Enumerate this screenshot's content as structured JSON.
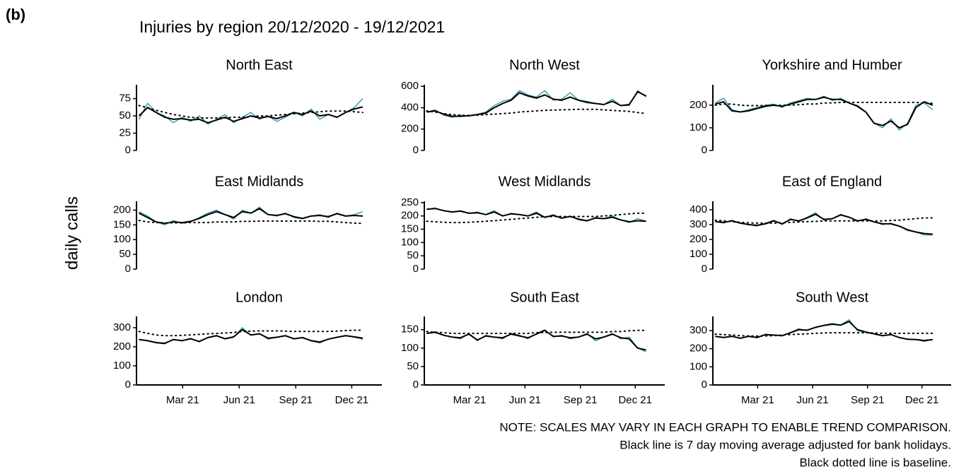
{
  "panel_label": "(b)",
  "chart_data": {
    "type": "line",
    "title": "Injuries by region 20/12/2020 - 19/12/2021",
    "y_label": "daily calls",
    "annotations": [
      "NOTE: SCALES MAY VARY IN EACH GRAPH TO ENABLE TREND COMPARISON.",
      "Black line is 7 day moving average adjusted for bank holidays.",
      "Black dotted line is baseline."
    ],
    "x": [
      "2020-12-20",
      "2021-01-03",
      "2021-01-17",
      "2021-01-31",
      "2021-02-14",
      "2021-02-28",
      "2021-03-14",
      "2021-03-28",
      "2021-04-11",
      "2021-04-25",
      "2021-05-09",
      "2021-05-23",
      "2021-06-06",
      "2021-06-20",
      "2021-07-04",
      "2021-07-18",
      "2021-08-01",
      "2021-08-15",
      "2021-08-29",
      "2021-09-12",
      "2021-09-26",
      "2021-10-10",
      "2021-10-24",
      "2021-11-07",
      "2021-11-21",
      "2021-12-05",
      "2021-12-19"
    ],
    "xlim": [
      "2020-12-16",
      "2022-01-19"
    ],
    "xticks": [
      {
        "value": "2021-03-01",
        "label": "Mar 21"
      },
      {
        "value": "2021-06-01",
        "label": "Jun 21"
      },
      {
        "value": "2021-09-01",
        "label": "Sep 21"
      },
      {
        "value": "2021-12-01",
        "label": "Dec 21"
      }
    ],
    "panels": [
      {
        "title": "North East",
        "ylim": [
          0,
          95
        ],
        "yticks": [
          0,
          25,
          50,
          75
        ],
        "series": [
          {
            "color": "#168a99",
            "values": [
              45,
              68,
              55,
              50,
              40,
              48,
              42,
              50,
              38,
              45,
              52,
              40,
              48,
              55,
              45,
              50,
              42,
              48,
              55,
              50,
              60,
              45,
              52,
              48,
              55,
              62,
              75
            ]
          },
          {
            "color": "#000000",
            "values": [
              50,
              62,
              55,
              48,
              45,
              46,
              44,
              45,
              40,
              44,
              48,
              42,
              46,
              50,
              47,
              49,
              46,
              50,
              55,
              52,
              57,
              50,
              52,
              48,
              55,
              60,
              63
            ]
          },
          {
            "color": "#000000",
            "style": "dotted",
            "values": [
              65,
              62,
              58,
              55,
              52,
              50,
              48,
              47,
              47,
              47,
              47,
              48,
              48,
              49,
              50,
              50,
              51,
              52,
              53,
              54,
              55,
              56,
              57,
              57,
              57,
              56,
              55
            ]
          }
        ]
      },
      {
        "title": "North West",
        "ylim": [
          0,
          615
        ],
        "yticks": [
          0,
          200,
          400,
          600
        ],
        "series": [
          {
            "color": "#168a99",
            "values": [
              360,
              380,
              330,
              310,
              330,
              320,
              340,
              360,
              420,
              460,
              480,
              560,
              520,
              500,
              560,
              470,
              480,
              540,
              470,
              460,
              440,
              430,
              480,
              420,
              420,
              560,
              500
            ]
          },
          {
            "color": "#000000",
            "values": [
              360,
              370,
              340,
              320,
              320,
              325,
              335,
              350,
              400,
              440,
              470,
              540,
              510,
              490,
              520,
              480,
              470,
              500,
              470,
              450,
              440,
              430,
              460,
              420,
              430,
              550,
              510
            ]
          },
          {
            "color": "#000000",
            "style": "dotted",
            "values": [
              370,
              360,
              345,
              335,
              330,
              328,
              330,
              335,
              340,
              345,
              350,
              360,
              365,
              370,
              375,
              378,
              380,
              382,
              385,
              385,
              385,
              380,
              375,
              370,
              365,
              355,
              345
            ]
          }
        ]
      },
      {
        "title": "Yorkshire and Humber",
        "ylim": [
          0,
          290
        ],
        "yticks": [
          0,
          100,
          200
        ],
        "series": [
          {
            "color": "#168a99",
            "values": [
              210,
              230,
              180,
              170,
              180,
              190,
              200,
              205,
              190,
              210,
              220,
              230,
              225,
              240,
              220,
              230,
              210,
              200,
              170,
              120,
              100,
              140,
              90,
              120,
              200,
              210,
              180
            ]
          },
          {
            "color": "#000000",
            "values": [
              205,
              215,
              175,
              170,
              175,
              185,
              195,
              200,
              195,
              205,
              215,
              225,
              225,
              235,
              225,
              225,
              210,
              195,
              170,
              120,
              110,
              130,
              100,
              115,
              190,
              215,
              200
            ]
          },
          {
            "color": "#000000",
            "style": "dotted",
            "values": [
              200,
              205,
              205,
              200,
              198,
              198,
              198,
              198,
              200,
              200,
              202,
              205,
              205,
              210,
              210,
              212,
              212,
              212,
              212,
              212,
              212,
              212,
              212,
              212,
              212,
              210,
              208
            ]
          }
        ]
      },
      {
        "title": "East Midlands",
        "ylim": [
          0,
          230
        ],
        "yticks": [
          0,
          50,
          100,
          150,
          200
        ],
        "series": [
          {
            "color": "#168a99",
            "values": [
              195,
              180,
              160,
              150,
              165,
              155,
              160,
              175,
              190,
              200,
              185,
              170,
              200,
              190,
              210,
              185,
              180,
              190,
              175,
              170,
              180,
              185,
              175,
              190,
              180,
              185,
              195
            ]
          },
          {
            "color": "#000000",
            "values": [
              190,
              175,
              160,
              155,
              160,
              158,
              162,
              172,
              185,
              195,
              185,
              175,
              195,
              190,
              205,
              185,
              182,
              188,
              178,
              172,
              180,
              182,
              178,
              188,
              180,
              182,
              180
            ]
          },
          {
            "color": "#000000",
            "style": "dotted",
            "values": [
              165,
              160,
              158,
              157,
              157,
              157,
              158,
              158,
              158,
              160,
              160,
              160,
              162,
              162,
              163,
              163,
              163,
              163,
              163,
              163,
              163,
              162,
              162,
              160,
              158,
              156,
              155
            ]
          }
        ]
      },
      {
        "title": "West Midlands",
        "ylim": [
          0,
          255
        ],
        "yticks": [
          0,
          50,
          100,
          150,
          200,
          250
        ],
        "series": [
          {
            "color": "#168a99",
            "values": [
              225,
              230,
              220,
              215,
              220,
              210,
              215,
              205,
              220,
              200,
              210,
              205,
              200,
              215,
              195,
              205,
              190,
              200,
              185,
              180,
              195,
              190,
              200,
              185,
              175,
              190,
              180
            ]
          },
          {
            "color": "#000000",
            "values": [
              225,
              228,
              220,
              215,
              218,
              210,
              212,
              205,
              215,
              200,
              208,
              205,
              200,
              210,
              195,
              202,
              192,
              198,
              188,
              182,
              192,
              190,
              195,
              185,
              178,
              182,
              180
            ]
          },
          {
            "color": "#000000",
            "style": "dotted",
            "values": [
              180,
              178,
              176,
              175,
              175,
              176,
              178,
              180,
              182,
              185,
              187,
              190,
              192,
              195,
              197,
              198,
              198,
              198,
              198,
              198,
              198,
              200,
              202,
              205,
              208,
              210,
              210
            ]
          }
        ]
      },
      {
        "title": "East of England",
        "ylim": [
          0,
          457
        ],
        "yticks": [
          0,
          100,
          200,
          300,
          400
        ],
        "series": [
          {
            "color": "#168a99",
            "values": [
              320,
              310,
              330,
              310,
              300,
              290,
              310,
              330,
              300,
              340,
              320,
              350,
              380,
              330,
              340,
              370,
              350,
              320,
              340,
              320,
              300,
              310,
              290,
              260,
              250,
              230,
              230
            ]
          },
          {
            "color": "#000000",
            "values": [
              320,
              315,
              325,
              310,
              300,
              295,
              305,
              325,
              305,
              335,
              325,
              345,
              370,
              335,
              340,
              365,
              350,
              325,
              335,
              318,
              305,
              305,
              290,
              265,
              250,
              240,
              235
            ]
          },
          {
            "color": "#000000",
            "style": "dotted",
            "values": [
              330,
              325,
              320,
              315,
              312,
              310,
              310,
              310,
              312,
              315,
              318,
              320,
              322,
              325,
              325,
              325,
              325,
              325,
              325,
              325,
              325,
              328,
              330,
              335,
              340,
              345,
              345
            ]
          }
        ]
      },
      {
        "title": "London",
        "ylim": [
          0,
          359
        ],
        "yticks": [
          0,
          100,
          200,
          300
        ],
        "series": [
          {
            "color": "#168a99",
            "values": [
              240,
              230,
              220,
              215,
              240,
              230,
              245,
              225,
              250,
              260,
              240,
              250,
              300,
              260,
              270,
              240,
              250,
              260,
              240,
              250,
              230,
              220,
              240,
              250,
              260,
              250,
              240
            ]
          },
          {
            "color": "#000000",
            "values": [
              238,
              232,
              222,
              218,
              238,
              232,
              242,
              228,
              248,
              258,
              242,
              252,
              290,
              262,
              268,
              245,
              250,
              258,
              242,
              248,
              232,
              225,
              240,
              250,
              258,
              252,
              245
            ]
          },
          {
            "color": "#000000",
            "style": "dotted",
            "values": [
              280,
              270,
              262,
              258,
              258,
              260,
              262,
              265,
              268,
              270,
              272,
              275,
              280,
              282,
              283,
              283,
              283,
              282,
              280,
              280,
              280,
              280,
              280,
              282,
              285,
              287,
              287
            ]
          }
        ]
      },
      {
        "title": "South East",
        "ylim": [
          0,
          186
        ],
        "yticks": [
          0,
          50,
          100,
          150
        ],
        "series": [
          {
            "color": "#168a99",
            "values": [
              140,
              145,
              135,
              130,
              125,
              140,
              120,
              135,
              130,
              125,
              140,
              135,
              125,
              140,
              150,
              130,
              135,
              125,
              130,
              140,
              120,
              130,
              140,
              125,
              130,
              100,
              90
            ]
          },
          {
            "color": "#000000",
            "values": [
              140,
              143,
              135,
              130,
              128,
              138,
              122,
              133,
              130,
              128,
              138,
              133,
              128,
              138,
              148,
              132,
              133,
              128,
              130,
              138,
              125,
              130,
              138,
              128,
              125,
              100,
              95
            ]
          },
          {
            "color": "#000000",
            "style": "dotted",
            "values": [
              145,
              143,
              142,
              140,
              140,
              140,
              140,
              140,
              140,
              140,
              140,
              140,
              140,
              142,
              142,
              143,
              143,
              143,
              143,
              143,
              143,
              143,
              145,
              145,
              147,
              148,
              148
            ]
          }
        ]
      },
      {
        "title": "South West",
        "ylim": [
          0,
          378
        ],
        "yticks": [
          0,
          100,
          200,
          300
        ],
        "series": [
          {
            "color": "#168a99",
            "values": [
              270,
              260,
              270,
              255,
              270,
              260,
              280,
              275,
              270,
              290,
              310,
              300,
              320,
              330,
              340,
              330,
              360,
              300,
              290,
              280,
              270,
              280,
              260,
              250,
              250,
              240,
              250
            ]
          },
          {
            "color": "#000000",
            "values": [
              268,
              262,
              268,
              258,
              268,
              262,
              278,
              275,
              272,
              288,
              305,
              302,
              318,
              328,
              335,
              330,
              350,
              305,
              292,
              282,
              272,
              278,
              262,
              252,
              250,
              245,
              250
            ]
          },
          {
            "color": "#000000",
            "style": "dotted",
            "values": [
              280,
              278,
              275,
              272,
              270,
              270,
              270,
              272,
              275,
              278,
              280,
              282,
              285,
              287,
              288,
              288,
              288,
              288,
              288,
              287,
              285,
              285,
              285,
              285,
              285,
              285,
              285
            ]
          }
        ]
      }
    ]
  }
}
